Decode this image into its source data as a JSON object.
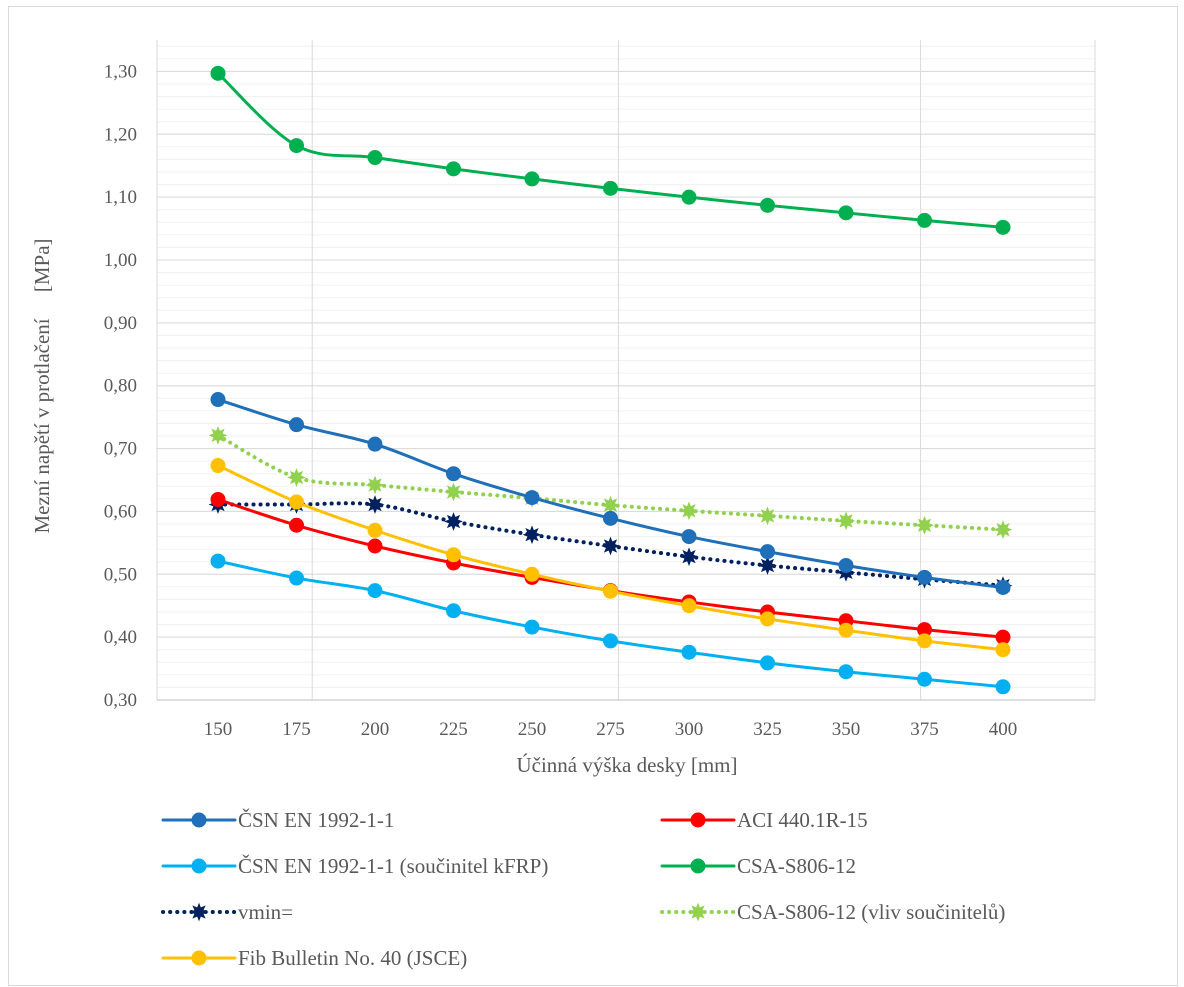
{
  "chart_data": {
    "type": "line",
    "title": "",
    "xlabel": "Účinná výška desky [mm]",
    "ylabel": "Mezní napětí v protlačení     [MPa]",
    "categories": [
      "150",
      "175",
      "200",
      "225",
      "250",
      "275",
      "300",
      "325",
      "350",
      "375",
      "400"
    ],
    "y_ticks": [
      "0,30",
      "0,40",
      "0,50",
      "0,60",
      "0,70",
      "0,80",
      "0,90",
      "1,00",
      "1,10",
      "1,20",
      "1,30"
    ],
    "ylim": [
      0.3,
      1.35
    ],
    "grid": true,
    "legend_position": "bottom",
    "series": [
      {
        "name": "ČSN EN 1992-1-1",
        "color": "#1f6fb9",
        "dash": "solid",
        "marker": "circle",
        "values": [
          0.778,
          0.738,
          0.707,
          0.66,
          0.622,
          0.589,
          0.56,
          0.536,
          0.514,
          0.495,
          0.479
        ]
      },
      {
        "name": "ACI 440.1R-15",
        "color": "#ff0000",
        "dash": "solid",
        "marker": "circle",
        "values": [
          0.619,
          0.578,
          0.545,
          0.518,
          0.495,
          0.474,
          0.456,
          0.44,
          0.426,
          0.412,
          0.4
        ]
      },
      {
        "name": "ČSN EN 1992-1-1 (součinitel kFRP)",
        "color": "#00b0f0",
        "dash": "solid",
        "marker": "circle",
        "values": [
          0.521,
          0.494,
          0.474,
          0.442,
          0.416,
          0.394,
          0.376,
          0.359,
          0.345,
          0.333,
          0.321
        ]
      },
      {
        "name": "CSA-S806-12",
        "color": "#00b050",
        "dash": "solid",
        "marker": "circle",
        "values": [
          1.297,
          1.182,
          1.163,
          1.145,
          1.129,
          1.114,
          1.1,
          1.087,
          1.075,
          1.063,
          1.052
        ]
      },
      {
        "name": "vmin=",
        "color": "#002060",
        "dash": "dot",
        "marker": "star",
        "values": [
          0.611,
          0.611,
          0.611,
          0.584,
          0.563,
          0.545,
          0.528,
          0.514,
          0.503,
          0.492,
          0.482
        ]
      },
      {
        "name": "CSA-S806-12 (vliv součinitelů)",
        "color": "#92d050",
        "dash": "dot",
        "marker": "star",
        "values": [
          0.721,
          0.654,
          0.642,
          0.631,
          0.621,
          0.61,
          0.601,
          0.593,
          0.585,
          0.578,
          0.571
        ]
      },
      {
        "name": "Fib Bulletin No. 40 (JSCE)",
        "color": "#ffc000",
        "dash": "solid",
        "marker": "circle",
        "values": [
          0.673,
          0.615,
          0.57,
          0.531,
          0.5,
          0.473,
          0.45,
          0.429,
          0.411,
          0.394,
          0.38
        ]
      }
    ]
  }
}
